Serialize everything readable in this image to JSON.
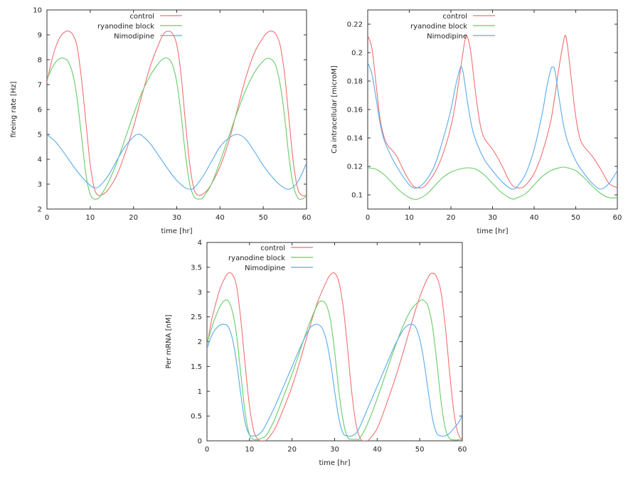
{
  "chart_data": [
    {
      "id": "firing",
      "type": "line",
      "title": "",
      "xlabel": "time [hr]",
      "ylabel": "fireing rate [Hz]",
      "xlim": [
        0,
        60
      ],
      "ylim": [
        2,
        10
      ],
      "xticks": [
        "0",
        "10",
        "20",
        "30",
        "40",
        "50",
        "60"
      ],
      "yticks": [
        "2",
        "3",
        "4",
        "5",
        "6",
        "7",
        "8",
        "9",
        "10"
      ],
      "xtick_values": [
        0,
        10,
        20,
        30,
        40,
        50,
        60
      ],
      "ytick_values": [
        2,
        3,
        4,
        5,
        6,
        7,
        8,
        9,
        10
      ],
      "legend_position": "top-center",
      "grid": false,
      "series": [
        {
          "name": "control",
          "color": "#f07070",
          "x": [
            0,
            1,
            2,
            3,
            4,
            5,
            6,
            7,
            8,
            9,
            10,
            11,
            12,
            13,
            14,
            16,
            18,
            20,
            22,
            24,
            26,
            27,
            28,
            29,
            30,
            31,
            32,
            33,
            34,
            35,
            36,
            37,
            38,
            40,
            42,
            44,
            46,
            48,
            50,
            51,
            52,
            53,
            54,
            55,
            56,
            57,
            58,
            59,
            60
          ],
          "y": [
            7.1,
            7.9,
            8.5,
            8.9,
            9.1,
            9.15,
            9.0,
            8.5,
            7.2,
            5.5,
            3.8,
            2.8,
            2.55,
            2.6,
            2.75,
            3.3,
            4.2,
            5.3,
            6.6,
            7.8,
            8.7,
            9.05,
            9.15,
            9.05,
            8.6,
            7.4,
            5.5,
            3.8,
            2.8,
            2.55,
            2.6,
            2.75,
            3.0,
            3.7,
            4.7,
            6.0,
            7.3,
            8.3,
            8.9,
            9.1,
            9.15,
            9.0,
            8.5,
            7.3,
            5.5,
            3.8,
            2.8,
            2.55,
            2.55
          ]
        },
        {
          "name": "ryanodine block",
          "color": "#66cc66",
          "x": [
            0,
            1,
            2,
            3,
            4,
            5,
            6,
            7,
            8,
            9,
            10,
            11,
            12,
            13,
            14,
            16,
            18,
            20,
            22,
            24,
            26,
            27,
            28,
            29,
            30,
            31,
            32,
            33,
            34,
            35,
            36,
            37,
            38,
            40,
            42,
            44,
            46,
            48,
            50,
            51,
            52,
            53,
            54,
            55,
            56,
            57,
            58,
            59,
            60
          ],
          "y": [
            7.2,
            7.6,
            7.9,
            8.05,
            8.05,
            7.9,
            7.4,
            6.4,
            4.9,
            3.4,
            2.6,
            2.4,
            2.45,
            2.7,
            3.0,
            3.8,
            4.8,
            5.8,
            6.7,
            7.4,
            7.9,
            8.05,
            8.05,
            7.8,
            7.1,
            5.8,
            4.2,
            3.0,
            2.5,
            2.4,
            2.45,
            2.7,
            3.0,
            3.9,
            4.9,
            5.9,
            6.8,
            7.5,
            7.95,
            8.05,
            8.0,
            7.7,
            6.9,
            5.6,
            4.0,
            2.9,
            2.45,
            2.4,
            2.55
          ]
        },
        {
          "name": "Nimodipine",
          "color": "#5aaaee",
          "x": [
            0,
            2,
            4,
            6,
            8,
            10,
            11,
            12,
            14,
            16,
            18,
            20,
            21,
            22,
            24,
            26,
            28,
            30,
            32,
            33,
            34,
            36,
            38,
            40,
            42,
            44,
            46,
            48,
            50,
            52,
            54,
            56,
            58,
            60
          ],
          "y": [
            5.0,
            4.7,
            4.25,
            3.75,
            3.3,
            2.95,
            2.85,
            2.9,
            3.3,
            3.9,
            4.5,
            4.9,
            5.0,
            4.95,
            4.6,
            4.1,
            3.6,
            3.15,
            2.85,
            2.8,
            2.85,
            3.3,
            3.9,
            4.5,
            4.85,
            5.0,
            4.8,
            4.3,
            3.75,
            3.3,
            2.95,
            2.8,
            3.1,
            3.85
          ]
        }
      ]
    },
    {
      "id": "calcium",
      "type": "line",
      "title": "",
      "xlabel": "time [hr]",
      "ylabel": "Ca intracellular [microM]",
      "xlim": [
        0,
        60
      ],
      "ylim": [
        0.09,
        0.23
      ],
      "xticks": [
        "0",
        "10",
        "20",
        "30",
        "40",
        "50",
        "60"
      ],
      "yticks": [
        "0.1",
        "0.12",
        "0.14",
        "0.16",
        "0.18",
        "0.2",
        "0.22"
      ],
      "xtick_values": [
        0,
        10,
        20,
        30,
        40,
        50,
        60
      ],
      "ytick_values": [
        0.1,
        0.12,
        0.14,
        0.16,
        0.18,
        0.2,
        0.22
      ],
      "legend_position": "top-center",
      "grid": false,
      "series": [
        {
          "name": "control",
          "color": "#f07070",
          "x": [
            0,
            1,
            2,
            3,
            4,
            5,
            6,
            7,
            8,
            9,
            10,
            11,
            12,
            13,
            14,
            16,
            18,
            20,
            21,
            22,
            23,
            23.7,
            24.5,
            25,
            26,
            27,
            28,
            30,
            32,
            34,
            35,
            36,
            37,
            38,
            40,
            42,
            44,
            45,
            46,
            47,
            47.5,
            48,
            49,
            50,
            51,
            52,
            54,
            56,
            58,
            60
          ],
          "y": [
            0.212,
            0.203,
            0.178,
            0.153,
            0.14,
            0.134,
            0.131,
            0.127,
            0.121,
            0.115,
            0.11,
            0.106,
            0.105,
            0.105,
            0.107,
            0.115,
            0.128,
            0.148,
            0.163,
            0.182,
            0.202,
            0.212,
            0.205,
            0.195,
            0.17,
            0.15,
            0.14,
            0.132,
            0.122,
            0.11,
            0.106,
            0.105,
            0.105,
            0.107,
            0.115,
            0.13,
            0.152,
            0.17,
            0.19,
            0.207,
            0.212,
            0.205,
            0.18,
            0.155,
            0.14,
            0.134,
            0.127,
            0.118,
            0.108,
            0.105
          ]
        },
        {
          "name": "ryanodine block",
          "color": "#66cc66",
          "x": [
            0,
            2,
            4,
            6,
            8,
            10,
            11,
            12,
            14,
            16,
            18,
            20,
            22,
            24,
            26,
            28,
            30,
            32,
            34,
            35,
            36,
            38,
            40,
            42,
            44,
            46,
            47,
            48,
            50,
            52,
            54,
            56,
            58,
            60
          ],
          "y": [
            0.119,
            0.118,
            0.114,
            0.108,
            0.102,
            0.098,
            0.097,
            0.097,
            0.1,
            0.106,
            0.112,
            0.116,
            0.118,
            0.119,
            0.118,
            0.114,
            0.108,
            0.102,
            0.098,
            0.097,
            0.098,
            0.101,
            0.107,
            0.113,
            0.117,
            0.119,
            0.1195,
            0.119,
            0.117,
            0.112,
            0.106,
            0.101,
            0.098,
            0.098
          ]
        },
        {
          "name": "Nimodipine",
          "color": "#5aaaee",
          "x": [
            0,
            1,
            2,
            3,
            4,
            6,
            8,
            10,
            11,
            12,
            13,
            14,
            16,
            18,
            20,
            21,
            22,
            22.5,
            23,
            24,
            25,
            26,
            28,
            30,
            32,
            34,
            35,
            36,
            38,
            40,
            42,
            43,
            44,
            44.5,
            45,
            46,
            47,
            48,
            50,
            52,
            54,
            56,
            58,
            60
          ],
          "y": [
            0.193,
            0.185,
            0.168,
            0.15,
            0.138,
            0.125,
            0.115,
            0.107,
            0.105,
            0.105,
            0.107,
            0.11,
            0.12,
            0.138,
            0.16,
            0.175,
            0.187,
            0.19,
            0.185,
            0.165,
            0.148,
            0.138,
            0.125,
            0.117,
            0.11,
            0.105,
            0.104,
            0.106,
            0.115,
            0.132,
            0.158,
            0.175,
            0.188,
            0.19,
            0.187,
            0.168,
            0.15,
            0.138,
            0.124,
            0.115,
            0.108,
            0.104,
            0.108,
            0.117
          ]
        }
      ]
    },
    {
      "id": "mrna",
      "type": "line",
      "title": "",
      "xlabel": "time [hr]",
      "ylabel": "Per mRNA [nM]",
      "xlim": [
        0,
        60
      ],
      "ylim": [
        0,
        4
      ],
      "xticks": [
        "0",
        "10",
        "20",
        "30",
        "40",
        "50",
        "60"
      ],
      "yticks": [
        "0",
        "0.5",
        "1",
        "1.5",
        "2",
        "2.5",
        "3",
        "3.5",
        "4"
      ],
      "xtick_values": [
        0,
        10,
        20,
        30,
        40,
        50,
        60
      ],
      "ytick_values": [
        0,
        0.5,
        1,
        1.5,
        2,
        2.5,
        3,
        3.5,
        4
      ],
      "legend_position": "top-center",
      "grid": false,
      "series": [
        {
          "name": "control",
          "color": "#f07070",
          "x": [
            0,
            1,
            2,
            3,
            4,
            5,
            6,
            7,
            8,
            9,
            10,
            11,
            12,
            13,
            14,
            16,
            18,
            20,
            22,
            24,
            26,
            28,
            29,
            30,
            31,
            32,
            33,
            34,
            35,
            36,
            37,
            38,
            40,
            42,
            44,
            46,
            48,
            50,
            52,
            53,
            54,
            55,
            56,
            57,
            58,
            59,
            60
          ],
          "y": [
            1.9,
            2.4,
            2.75,
            3.05,
            3.25,
            3.38,
            3.35,
            3.1,
            2.4,
            1.5,
            0.7,
            0.2,
            0.03,
            0.0,
            0.02,
            0.25,
            0.65,
            1.1,
            1.65,
            2.25,
            2.8,
            3.2,
            3.35,
            3.38,
            3.2,
            2.7,
            1.9,
            1.0,
            0.35,
            0.05,
            0.0,
            0.02,
            0.25,
            0.7,
            1.2,
            1.75,
            2.35,
            2.9,
            3.3,
            3.38,
            3.3,
            3.0,
            2.3,
            1.4,
            0.6,
            0.15,
            0.02
          ]
        },
        {
          "name": "ryanodine block",
          "color": "#66cc66",
          "x": [
            0,
            1,
            2,
            3,
            4,
            5,
            6,
            7,
            8,
            9,
            10,
            11,
            12,
            13,
            14,
            16,
            18,
            20,
            22,
            24,
            26,
            27,
            28,
            29,
            30,
            31,
            32,
            33,
            34,
            35,
            36,
            38,
            40,
            42,
            44,
            46,
            48,
            50,
            51,
            52,
            53,
            54,
            55,
            56,
            57,
            58,
            59,
            60
          ],
          "y": [
            1.95,
            2.25,
            2.5,
            2.7,
            2.82,
            2.82,
            2.6,
            2.1,
            1.3,
            0.55,
            0.12,
            0.03,
            0.03,
            0.06,
            0.12,
            0.45,
            0.9,
            1.35,
            1.85,
            2.35,
            2.75,
            2.82,
            2.75,
            2.45,
            1.8,
            1.0,
            0.4,
            0.08,
            0.03,
            0.03,
            0.06,
            0.4,
            0.85,
            1.35,
            1.85,
            2.3,
            2.65,
            2.82,
            2.83,
            2.7,
            2.3,
            1.6,
            0.8,
            0.25,
            0.05,
            0.02,
            0.02,
            0.03
          ]
        },
        {
          "name": "Nimodipine",
          "color": "#5aaaee",
          "x": [
            0,
            1,
            2,
            3,
            4,
            5,
            6,
            7,
            8,
            9,
            10,
            11,
            12,
            13,
            14,
            16,
            18,
            20,
            22,
            24,
            25,
            26,
            27,
            28,
            29,
            30,
            31,
            32,
            33,
            34,
            35,
            36,
            38,
            40,
            42,
            44,
            46,
            47,
            48,
            49,
            50,
            51,
            52,
            53,
            54,
            55,
            56,
            57,
            58,
            59,
            60
          ],
          "y": [
            1.85,
            2.1,
            2.25,
            2.33,
            2.35,
            2.3,
            2.05,
            1.55,
            0.9,
            0.35,
            0.12,
            0.1,
            0.12,
            0.2,
            0.35,
            0.7,
            1.1,
            1.5,
            1.9,
            2.25,
            2.33,
            2.35,
            2.28,
            2.05,
            1.6,
            1.0,
            0.45,
            0.15,
            0.1,
            0.1,
            0.15,
            0.3,
            0.7,
            1.1,
            1.5,
            1.9,
            2.22,
            2.32,
            2.35,
            2.3,
            2.05,
            1.6,
            1.0,
            0.45,
            0.15,
            0.1,
            0.1,
            0.15,
            0.25,
            0.35,
            0.5
          ]
        }
      ]
    }
  ]
}
